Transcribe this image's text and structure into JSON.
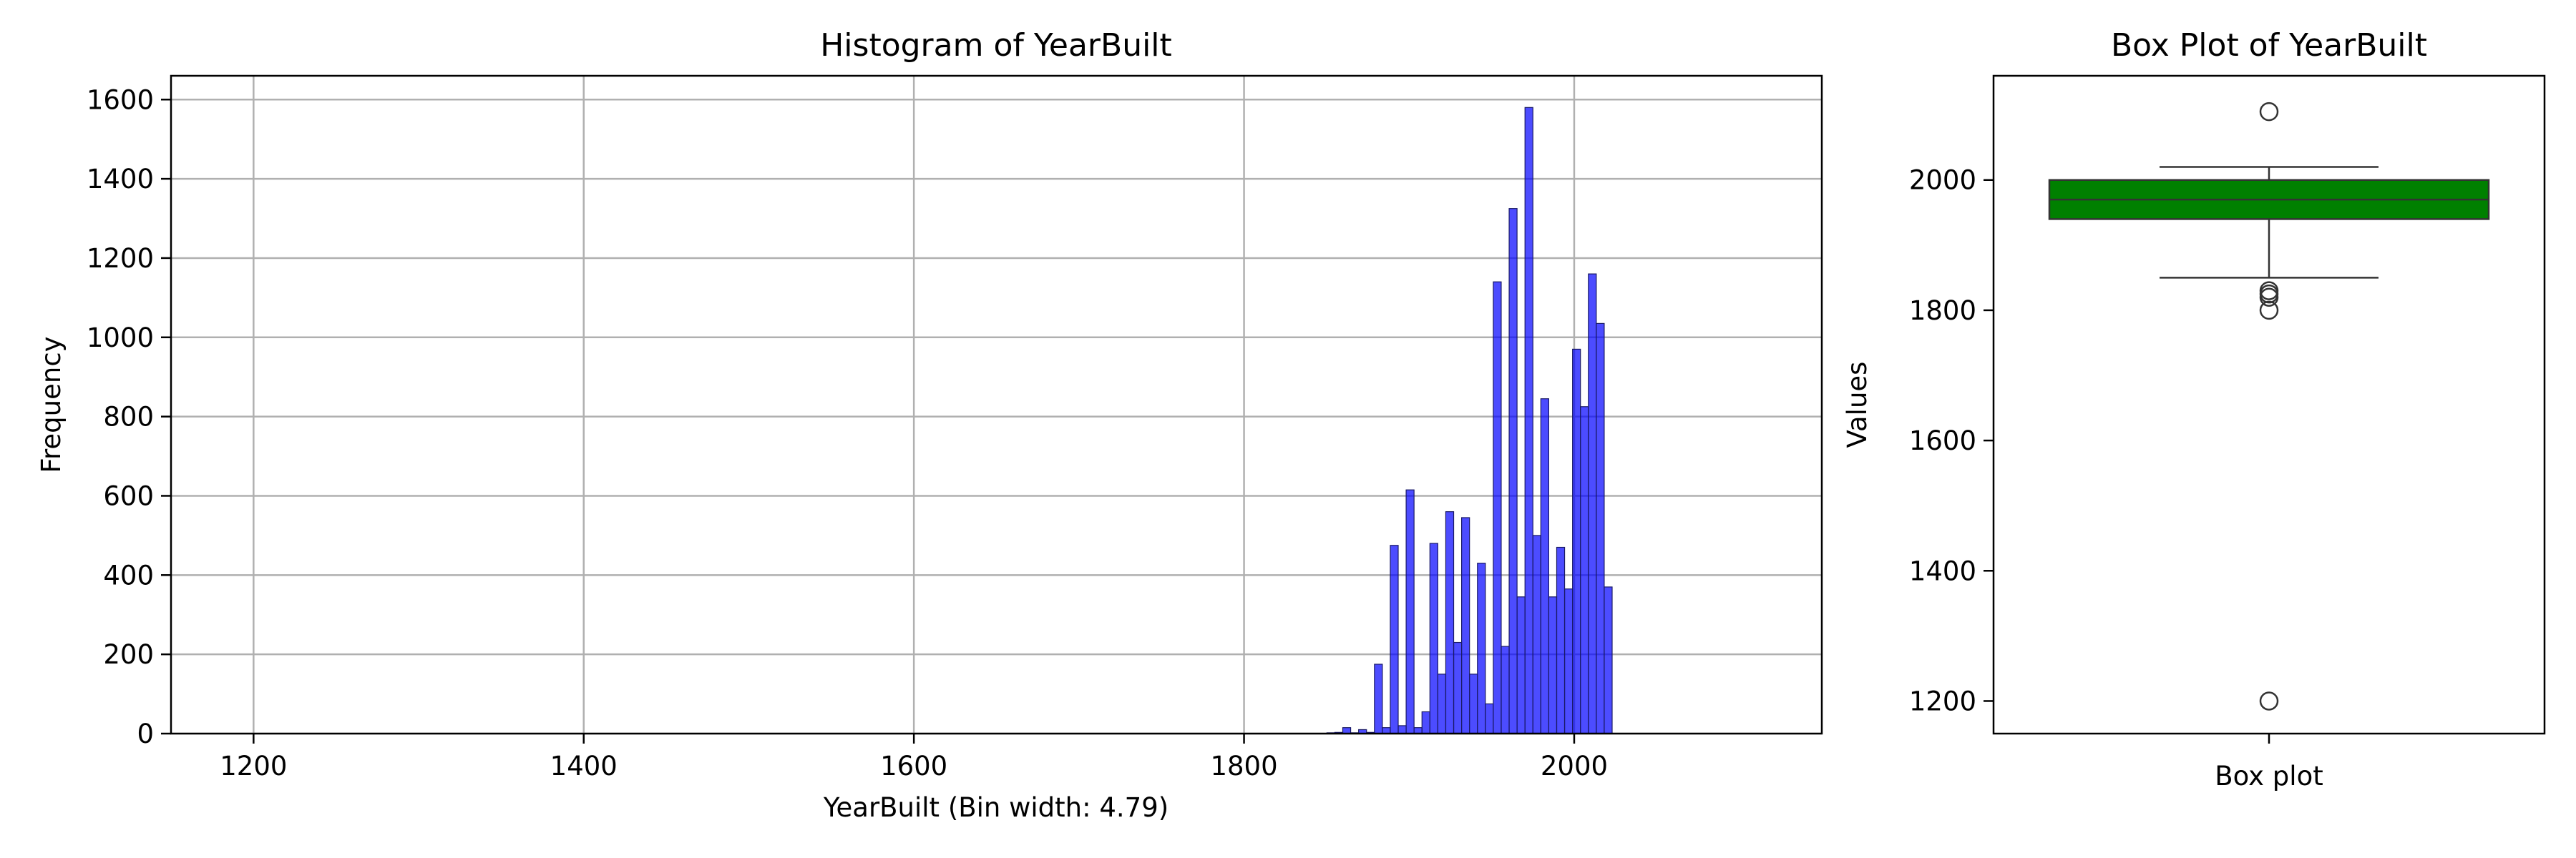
{
  "chart_data": [
    {
      "type": "bar",
      "title": "Histogram of YearBuilt",
      "xlabel": "YearBuilt (Bin width: 4.79)",
      "ylabel": "Frequency",
      "xlim": [
        1150,
        2150
      ],
      "ylim": [
        0,
        1660
      ],
      "xticks": [
        "1200",
        "1400",
        "1600",
        "1800",
        "2000"
      ],
      "yticks": [
        "0",
        "200",
        "400",
        "600",
        "800",
        "1000",
        "1200",
        "1400",
        "1600"
      ],
      "grid": true,
      "bar_color": "#0000ff",
      "bin_width": 4.79,
      "bins": [
        {
          "x": 1850.2,
          "y": 2
        },
        {
          "x": 1855.0,
          "y": 3
        },
        {
          "x": 1859.8,
          "y": 15
        },
        {
          "x": 1864.6,
          "y": 2
        },
        {
          "x": 1869.4,
          "y": 10
        },
        {
          "x": 1874.2,
          "y": 3
        },
        {
          "x": 1879.0,
          "y": 175
        },
        {
          "x": 1883.8,
          "y": 15
        },
        {
          "x": 1888.6,
          "y": 475
        },
        {
          "x": 1893.4,
          "y": 20
        },
        {
          "x": 1898.2,
          "y": 615
        },
        {
          "x": 1903.0,
          "y": 15
        },
        {
          "x": 1907.8,
          "y": 55
        },
        {
          "x": 1912.6,
          "y": 480
        },
        {
          "x": 1917.4,
          "y": 150
        },
        {
          "x": 1922.2,
          "y": 560
        },
        {
          "x": 1927.0,
          "y": 230
        },
        {
          "x": 1931.8,
          "y": 545
        },
        {
          "x": 1936.6,
          "y": 150
        },
        {
          "x": 1941.4,
          "y": 430
        },
        {
          "x": 1946.2,
          "y": 75
        },
        {
          "x": 1951.0,
          "y": 1140
        },
        {
          "x": 1955.8,
          "y": 220
        },
        {
          "x": 1960.6,
          "y": 1325
        },
        {
          "x": 1965.4,
          "y": 345
        },
        {
          "x": 1970.2,
          "y": 1580
        },
        {
          "x": 1975.0,
          "y": 500
        },
        {
          "x": 1979.8,
          "y": 845
        },
        {
          "x": 1984.6,
          "y": 345
        },
        {
          "x": 1989.4,
          "y": 470
        },
        {
          "x": 1994.2,
          "y": 365
        },
        {
          "x": 1999.0,
          "y": 970
        },
        {
          "x": 2003.8,
          "y": 825
        },
        {
          "x": 2008.6,
          "y": 1160
        },
        {
          "x": 2013.4,
          "y": 1035
        },
        {
          "x": 2018.2,
          "y": 370
        }
      ]
    },
    {
      "type": "box",
      "title": "Box Plot of YearBuilt",
      "xlabel": "Box plot",
      "ylabel": "Values",
      "ylim": [
        1150,
        2160
      ],
      "yticks": [
        "1200",
        "1400",
        "1600",
        "1800",
        "2000"
      ],
      "grid": false,
      "box_color": "#008000",
      "q1": 1940,
      "median": 1970,
      "q3": 2000,
      "whisker_low": 1850,
      "whisker_high": 2020,
      "outliers": [
        2105,
        1830,
        1825,
        1820,
        1800,
        1200
      ]
    }
  ]
}
